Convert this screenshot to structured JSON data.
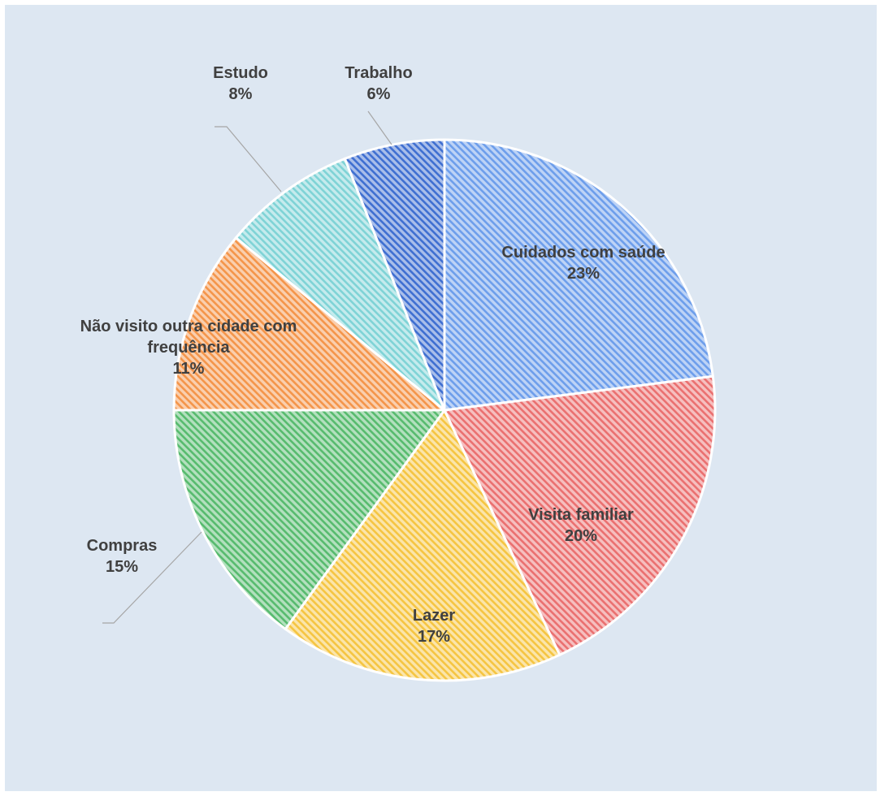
{
  "chart_data": {
    "type": "pie",
    "title": "",
    "start_angle_deg": 0,
    "direction": "clockwise",
    "slices": [
      {
        "label": "Cuidados com saúde",
        "value": 23,
        "display": "23%",
        "color": "#6d9eeb"
      },
      {
        "label": "Visita familiar",
        "value": 20,
        "display": "20%",
        "color": "#ea7070"
      },
      {
        "label": "Lazer",
        "value": 17,
        "display": "17%",
        "color": "#f5c542"
      },
      {
        "label": "Compras",
        "value": 15,
        "display": "15%",
        "color": "#57bb6e"
      },
      {
        "label": "Não visito outra cidade com frequência",
        "value": 11,
        "display": "11%",
        "color": "#f4954a"
      },
      {
        "label": "Estudo",
        "value": 8,
        "display": "8%",
        "color": "#7fd3d6"
      },
      {
        "label": "Trabalho",
        "value": 6,
        "display": "6%",
        "color": "#3f6fd1"
      }
    ],
    "background_color": "#dde7f2",
    "legend": "none",
    "data_labels": "category-and-percent"
  }
}
